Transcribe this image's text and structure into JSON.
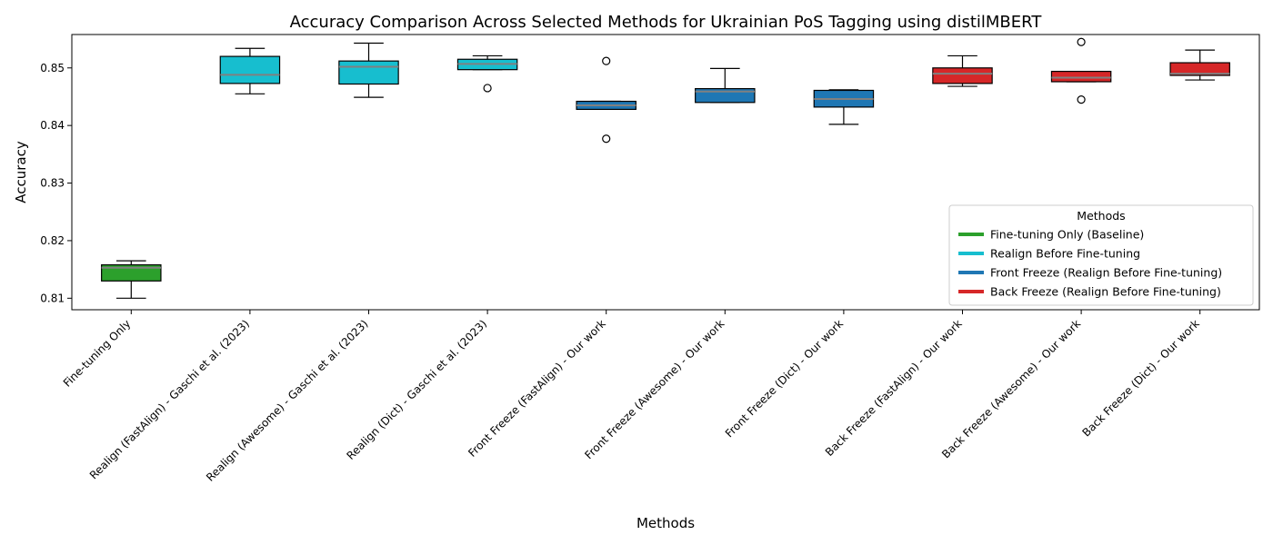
{
  "chart_data": {
    "type": "box",
    "title": "Accuracy Comparison Across Selected Methods for Ukrainian PoS Tagging using distilMBERT",
    "xlabel": "Methods",
    "ylabel": "Accuracy",
    "ylim": [
      0.808,
      0.8558
    ],
    "yticks": [
      0.81,
      0.82,
      0.83,
      0.84,
      0.85
    ],
    "ytick_labels": [
      "0.81",
      "0.82",
      "0.83",
      "0.84",
      "0.85"
    ],
    "legend": {
      "title": "Methods",
      "placement": "lower-right",
      "entries": [
        {
          "label": "Fine-tuning Only (Baseline)",
          "color": "#2ca02c"
        },
        {
          "label": "Realign Before Fine-tuning",
          "color": "#17becf"
        },
        {
          "label": "Front Freeze (Realign Before Fine-tuning)",
          "color": "#1f77b4"
        },
        {
          "label": "Back Freeze (Realign Before Fine-tuning)",
          "color": "#d62728"
        }
      ]
    },
    "median_color": "#808080",
    "boxes": [
      {
        "category": "Fine-tuning Only",
        "color": "#2ca02c",
        "whislo": 0.81,
        "q1": 0.813,
        "med": 0.8153,
        "q3": 0.8158,
        "whishi": 0.8165,
        "fliers": []
      },
      {
        "category": "Realign (FastAlign) - Gaschi et al. (2023)",
        "color": "#17becf",
        "whislo": 0.8455,
        "q1": 0.8473,
        "med": 0.8488,
        "q3": 0.852,
        "whishi": 0.8534,
        "fliers": []
      },
      {
        "category": "Realign (Awesome) - Gaschi et al. (2023)",
        "color": "#17becf",
        "whislo": 0.8449,
        "q1": 0.8472,
        "med": 0.8502,
        "q3": 0.8512,
        "whishi": 0.8543,
        "fliers": []
      },
      {
        "category": "Realign (Dict) - Gaschi et al. (2023)",
        "color": "#17becf",
        "whislo": 0.8497,
        "q1": 0.8497,
        "med": 0.8507,
        "q3": 0.8515,
        "whishi": 0.8521,
        "fliers": [
          0.8465
        ]
      },
      {
        "category": "Front Freeze (FastAlign) - Our work",
        "color": "#1f77b4",
        "whislo": 0.8428,
        "q1": 0.8428,
        "med": 0.8435,
        "q3": 0.8442,
        "whishi": 0.8442,
        "fliers": [
          0.8512,
          0.8377
        ]
      },
      {
        "category": "Front Freeze (Awesome) - Our work",
        "color": "#1f77b4",
        "whislo": 0.844,
        "q1": 0.844,
        "med": 0.8459,
        "q3": 0.8464,
        "whishi": 0.8499,
        "fliers": []
      },
      {
        "category": "Front Freeze (Dict) - Our work",
        "color": "#1f77b4",
        "whislo": 0.8402,
        "q1": 0.8432,
        "med": 0.8446,
        "q3": 0.8461,
        "whishi": 0.8462,
        "fliers": []
      },
      {
        "category": "Back Freeze (FastAlign) - Our work",
        "color": "#d62728",
        "whislo": 0.8468,
        "q1": 0.8473,
        "med": 0.849,
        "q3": 0.85,
        "whishi": 0.8521,
        "fliers": []
      },
      {
        "category": "Back Freeze (Awesome) - Our work",
        "color": "#d62728",
        "whislo": 0.8476,
        "q1": 0.8476,
        "med": 0.8483,
        "q3": 0.8494,
        "whishi": 0.8494,
        "fliers": [
          0.8545,
          0.8445
        ]
      },
      {
        "category": "Back Freeze (Dict) - Our work",
        "color": "#d62728",
        "whislo": 0.8479,
        "q1": 0.8487,
        "med": 0.849,
        "q3": 0.8509,
        "whishi": 0.8531,
        "fliers": []
      }
    ]
  }
}
